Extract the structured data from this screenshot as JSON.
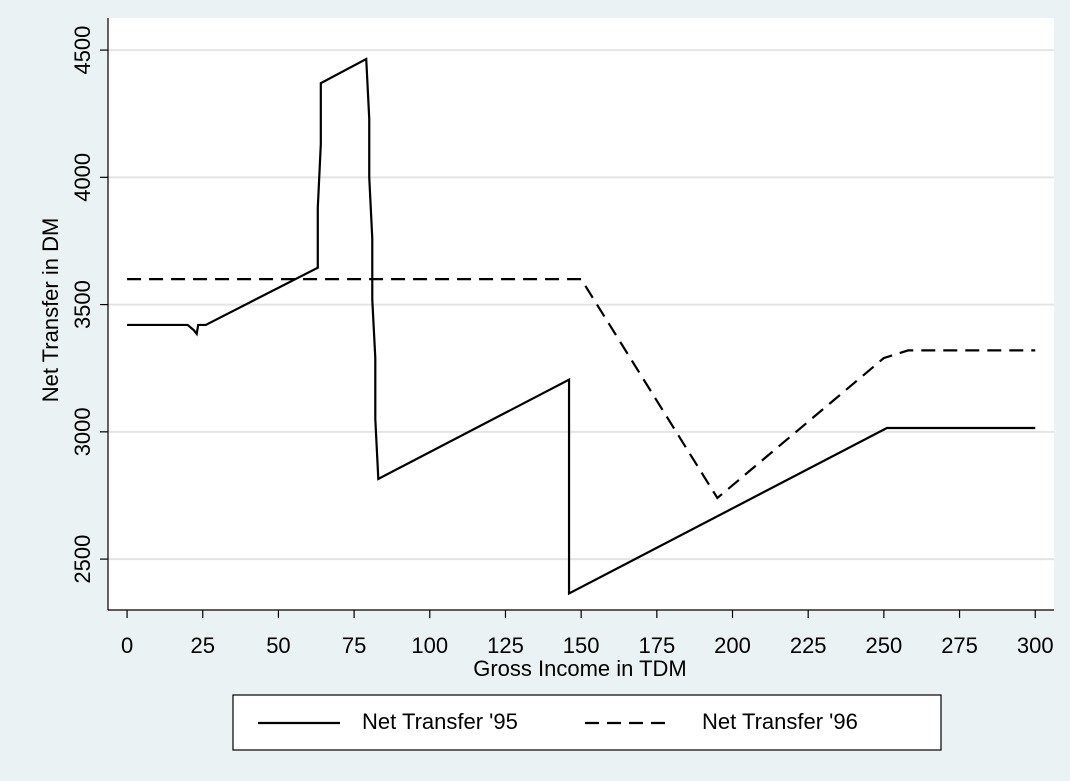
{
  "chart_data": {
    "type": "line",
    "xlabel": "Gross Income in TDM",
    "ylabel": "Net Transfer in DM",
    "series": [
      {
        "name": "Net Transfer '95",
        "color": "#000000",
        "linestyle": "solid",
        "x": [
          0,
          20,
          22,
          23,
          23.5,
          26,
          63,
          63,
          64,
          64,
          79,
          80,
          80,
          81,
          81,
          82,
          82,
          83,
          146,
          146,
          251,
          300
        ],
        "values": [
          3420,
          3420,
          3400,
          3385,
          3420,
          3420,
          3645,
          3880,
          4130,
          4370,
          4465,
          4230,
          4000,
          3760,
          3520,
          3290,
          3050,
          2815,
          3205,
          2365,
          3015,
          3015
        ]
      },
      {
        "name": "Net Transfer '96",
        "color": "#000000",
        "linestyle": "dashed",
        "x": [
          0,
          150,
          195,
          250,
          258,
          300
        ],
        "values": [
          3600,
          3600,
          2740,
          3290,
          3320,
          3320
        ]
      }
    ],
    "xlim": [
      -6.3,
      306.2
    ],
    "xticks": [
      0,
      25,
      50,
      75,
      100,
      125,
      150,
      175,
      200,
      225,
      250,
      275,
      300
    ],
    "ylim": [
      2300,
      4626
    ],
    "yticks": [
      2500,
      3000,
      3500,
      4000,
      4500
    ],
    "grid": true,
    "legend": "bottom"
  }
}
